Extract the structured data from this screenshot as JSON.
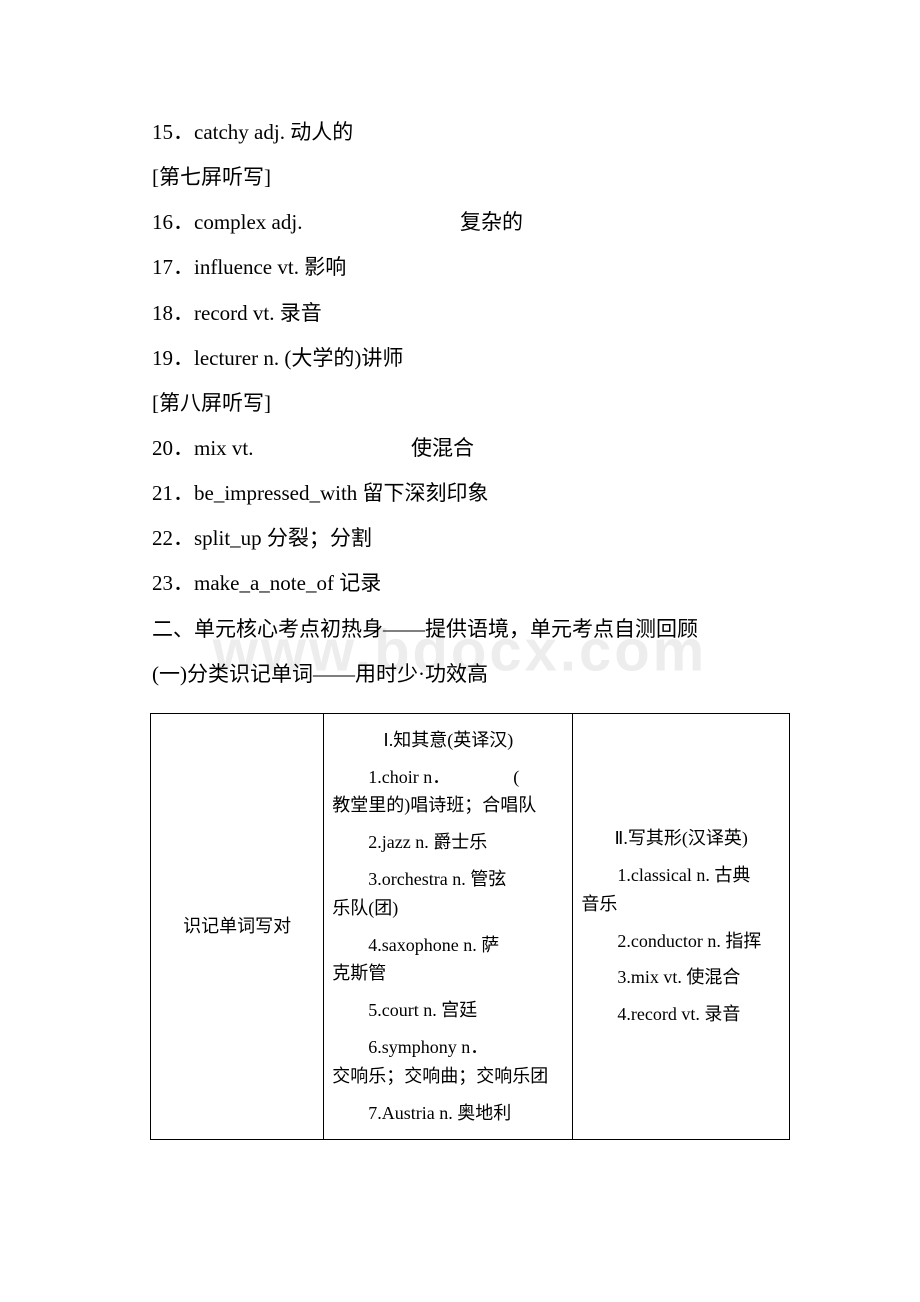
{
  "watermark": "www.bdocx.com",
  "lines": {
    "l15": "15．catchy adj. 动人的",
    "h7": "[第七屏听写]",
    "l16_a": "16．complex adj.",
    "l16_b": "复杂的",
    "l17": "17．influence vt. 影响",
    "l18": "18．record vt. 录音",
    "l19": "19．lecturer n. (大学的)讲师",
    "h8": "[第八屏听写]",
    "l20_a": "20．mix vt.",
    "l20_b": "使混合",
    "l21": "21．be_impressed_with  留下深刻印象",
    "l22": "22．split_up  分裂；分割",
    "l23": "23．make_a_note_of  记录",
    "sec2": "二、单元核心考点初热身——提供语境，单元考点自测回顾",
    "sub1": "(一)分类识记单词——用时少·功效高"
  },
  "table": {
    "row_label": "识记单词写对",
    "col2": {
      "heading": "Ⅰ.知其意(英译汉)",
      "items": [
        {
          "lead": "1.choir n．　　　　(",
          "cont": "教堂里的)唱诗班；合唱队"
        },
        {
          "lead": "2.jazz n. 爵士乐",
          "cont": ""
        },
        {
          "lead": "3.orchestra n. 管弦",
          "cont": "乐队(团)"
        },
        {
          "lead": "4.saxophone n. 萨",
          "cont": "克斯管"
        },
        {
          "lead": "5.court n. 宫廷",
          "cont": ""
        },
        {
          "lead": "6.symphony n．",
          "cont": "交响乐；交响曲；交响乐团"
        },
        {
          "lead": "7.Austria n. 奥地利",
          "cont": ""
        }
      ]
    },
    "col3": {
      "heading": "Ⅱ.写其形(汉译英)",
      "items": [
        {
          "lead": "1.classical n. 古典",
          "cont": "音乐"
        },
        {
          "lead": "2.conductor n. 指挥",
          "cont": ""
        },
        {
          "lead": "3.mix vt. 使混合",
          "cont": ""
        },
        {
          "lead": "4.record vt. 录音",
          "cont": ""
        }
      ]
    }
  }
}
